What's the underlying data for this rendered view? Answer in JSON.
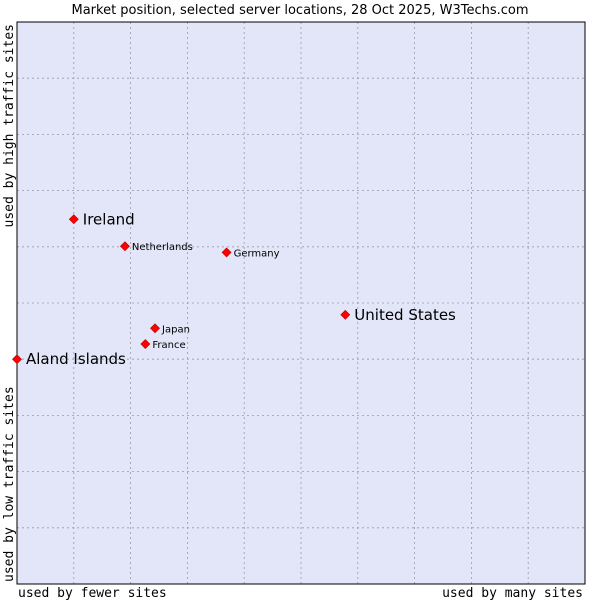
{
  "chart_data": {
    "type": "scatter",
    "title": "Market position, selected server locations, 28 Oct 2025, W3Techs.com",
    "xlabel_left": "used by fewer sites",
    "xlabel_right": "used by many sites",
    "ylabel_bottom": "used by low traffic sites",
    "ylabel_top": "used by high traffic sites",
    "xlim": [
      0,
      100
    ],
    "ylim": [
      0,
      100
    ],
    "grid": true,
    "point_color": "#ff0000",
    "plot_background": "#e3e5f8",
    "points": [
      {
        "name": "Ireland",
        "x": 10.0,
        "y": 64.9,
        "size": "large"
      },
      {
        "name": "Netherlands",
        "x": 19.0,
        "y": 60.1,
        "size": "small"
      },
      {
        "name": "Germany",
        "x": 36.9,
        "y": 59.0,
        "size": "small"
      },
      {
        "name": "United States",
        "x": 57.8,
        "y": 47.9,
        "size": "large"
      },
      {
        "name": "Japan",
        "x": 24.3,
        "y": 45.5,
        "size": "small"
      },
      {
        "name": "France",
        "x": 22.6,
        "y": 42.7,
        "size": "small"
      },
      {
        "name": "Aland Islands",
        "x": 0.0,
        "y": 40.0,
        "size": "large"
      }
    ]
  }
}
